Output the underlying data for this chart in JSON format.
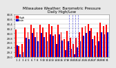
{
  "title": "Milwaukee Weather: Barometric Pressure\nDaily High/Low",
  "title_fontsize": 4.0,
  "background_color": "#e8e8e8",
  "plot_bg_color": "#ffffff",
  "bar_width": 0.42,
  "high_color": "#ff0000",
  "low_color": "#0000cc",
  "ylim": [
    29.0,
    30.8
  ],
  "yticks": [
    29.0,
    29.2,
    29.4,
    29.6,
    29.8,
    30.0,
    30.2,
    30.4,
    30.6,
    30.8
  ],
  "high_values": [
    30.15,
    29.45,
    29.55,
    30.25,
    30.05,
    30.35,
    30.2,
    30.05,
    30.35,
    30.25,
    30.05,
    30.4,
    30.3,
    29.95,
    30.35,
    30.05,
    29.75,
    30.1,
    29.8,
    29.55,
    29.8,
    30.05,
    30.25,
    30.3,
    30.4,
    30.2,
    29.9,
    30.05,
    30.45,
    30.3,
    30.35
  ],
  "low_values": [
    29.5,
    29.1,
    29.2,
    29.8,
    29.75,
    30.0,
    29.85,
    29.65,
    30.0,
    29.85,
    29.65,
    29.95,
    29.9,
    29.55,
    29.95,
    29.7,
    29.3,
    29.65,
    29.35,
    29.1,
    29.4,
    29.65,
    29.9,
    30.0,
    30.1,
    29.75,
    29.5,
    29.65,
    30.05,
    29.95,
    30.05
  ],
  "xlabels": [
    "1",
    "2",
    "3",
    "4",
    "5",
    "6",
    "7",
    "8",
    "9",
    "10",
    "11",
    "12",
    "13",
    "14",
    "15",
    "16",
    "17",
    "18",
    "19",
    "20",
    "21",
    "22",
    "23",
    "24",
    "25",
    "26",
    "27",
    "28",
    "29",
    "30",
    "31"
  ],
  "xlabel_fontsize": 2.8,
  "ytick_fontsize": 2.8,
  "grid_color": "#aaaaaa",
  "dashed_vlines": [
    17.5,
    18.5,
    19.5,
    20.5
  ],
  "legend_fontsize": 3.0
}
